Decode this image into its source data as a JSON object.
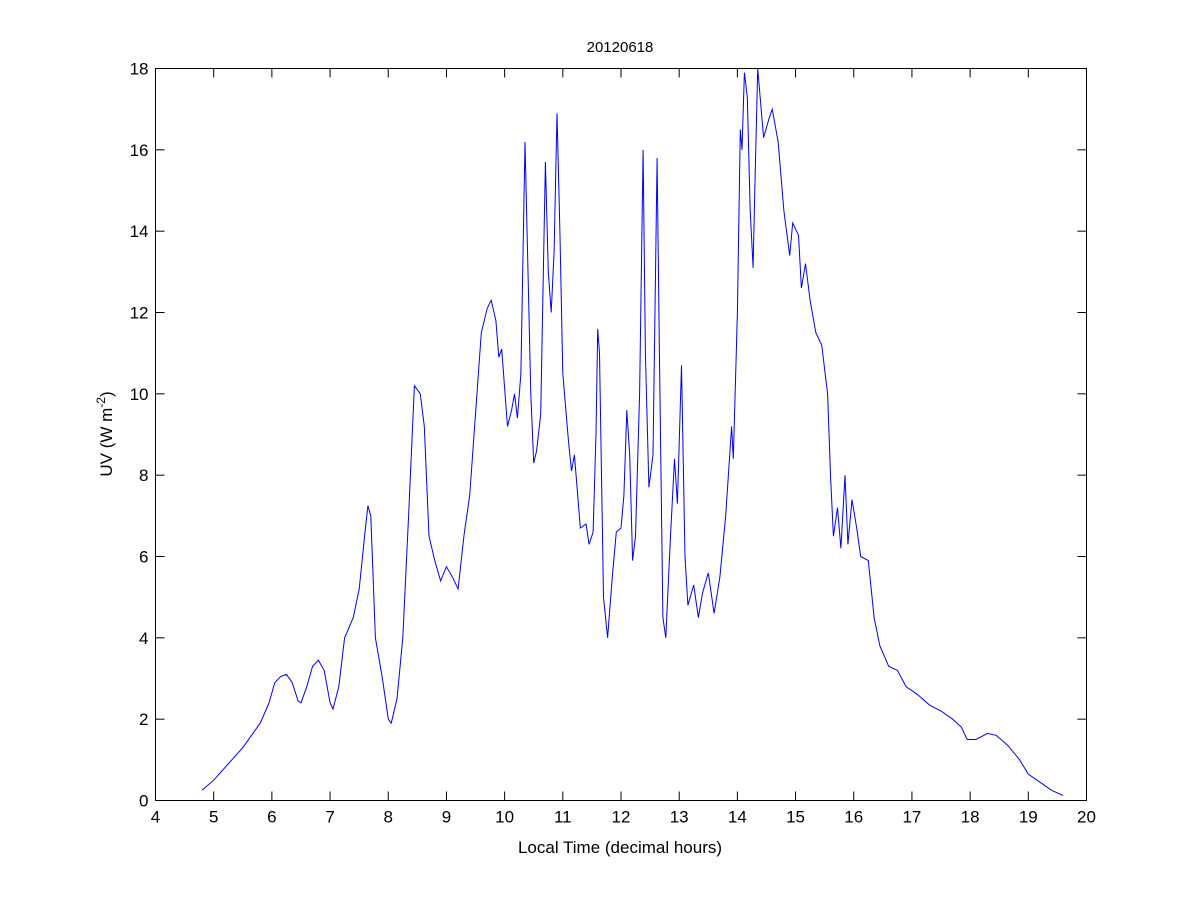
{
  "chart_data": {
    "type": "line",
    "title": "20120618",
    "xlabel": "Local Time (decimal hours)",
    "ylabel": "UV (W m",
    "ylabel_superscript": "-2",
    "ylabel_suffix": ")",
    "xlim": [
      4,
      20
    ],
    "ylim": [
      0,
      18
    ],
    "xticks": [
      4,
      5,
      6,
      7,
      8,
      9,
      10,
      11,
      12,
      13,
      14,
      15,
      16,
      17,
      18,
      19,
      20
    ],
    "yticks": [
      0,
      2,
      4,
      6,
      8,
      10,
      12,
      14,
      16,
      18
    ],
    "grid": false,
    "line_color": "#0000ff",
    "series": [
      {
        "x": [
          4.8,
          5.0,
          5.5,
          5.8,
          5.95,
          6.05,
          6.15,
          6.25,
          6.35,
          6.45,
          6.5,
          6.6,
          6.7,
          6.8,
          6.9,
          7.0,
          7.05,
          7.15,
          7.25,
          7.4,
          7.5,
          7.6,
          7.65,
          7.7,
          7.78,
          7.9,
          8.0,
          8.05,
          8.15,
          8.25,
          8.35,
          8.45,
          8.55,
          8.62,
          8.7,
          8.8,
          8.9,
          9.0,
          9.1,
          9.2,
          9.3,
          9.4,
          9.5,
          9.6,
          9.7,
          9.77,
          9.85,
          9.9,
          9.95,
          10.05,
          10.12,
          10.17,
          10.22,
          10.28,
          10.35,
          10.45,
          10.5,
          10.55,
          10.62,
          10.7,
          10.75,
          10.8,
          10.85,
          10.9,
          10.95,
          11.0,
          11.1,
          11.15,
          11.2,
          11.25,
          11.3,
          11.4,
          11.45,
          11.52,
          11.57,
          11.6,
          11.63,
          11.7,
          11.77,
          11.85,
          11.92,
          12.0,
          12.05,
          12.1,
          12.15,
          12.2,
          12.25,
          12.32,
          12.38,
          12.42,
          12.48,
          12.55,
          12.62,
          12.66,
          12.72,
          12.77,
          12.85,
          12.92,
          12.97,
          13.04,
          13.1,
          13.15,
          13.25,
          13.33,
          13.4,
          13.5,
          13.6,
          13.7,
          13.8,
          13.9,
          13.93,
          14.0,
          14.05,
          14.08,
          14.12,
          14.17,
          14.22,
          14.27,
          14.3,
          14.35,
          14.45,
          14.55,
          14.6,
          14.7,
          14.8,
          14.9,
          14.95,
          15.05,
          15.1,
          15.17,
          15.25,
          15.35,
          15.45,
          15.55,
          15.6,
          15.65,
          15.72,
          15.78,
          15.85,
          15.9,
          15.97,
          16.05,
          16.12,
          16.25,
          16.35,
          16.45,
          16.6,
          16.75,
          16.9,
          17.1,
          17.3,
          17.5,
          17.7,
          17.85,
          17.95,
          18.1,
          18.3,
          18.45,
          18.65,
          18.85,
          19.0,
          19.2,
          19.4,
          19.6
        ],
        "y": [
          0.25,
          0.5,
          1.3,
          1.9,
          2.4,
          2.9,
          3.05,
          3.1,
          2.9,
          2.45,
          2.4,
          2.8,
          3.3,
          3.45,
          3.2,
          2.4,
          2.25,
          2.8,
          4.0,
          4.5,
          5.2,
          6.6,
          7.25,
          7.0,
          4.0,
          3.0,
          2.0,
          1.9,
          2.5,
          4.0,
          7.0,
          10.2,
          10.0,
          9.2,
          6.5,
          5.9,
          5.4,
          5.75,
          5.5,
          5.2,
          6.5,
          7.5,
          9.5,
          11.5,
          12.1,
          12.3,
          11.8,
          10.9,
          11.1,
          9.2,
          9.6,
          10.0,
          9.4,
          10.5,
          16.2,
          10.0,
          8.3,
          8.6,
          9.5,
          15.7,
          13.0,
          12.0,
          13.5,
          16.9,
          14.0,
          10.5,
          8.8,
          8.1,
          8.5,
          7.6,
          6.7,
          6.8,
          6.3,
          6.6,
          9.0,
          11.6,
          11.0,
          5.0,
          4.0,
          5.5,
          6.6,
          6.7,
          7.5,
          9.6,
          8.5,
          5.9,
          6.5,
          10.0,
          16.0,
          11.0,
          7.7,
          8.5,
          15.8,
          11.0,
          4.5,
          4.0,
          6.5,
          8.4,
          7.3,
          10.7,
          6.0,
          4.8,
          5.3,
          4.5,
          5.1,
          5.6,
          4.6,
          5.5,
          7.0,
          9.2,
          8.4,
          12.0,
          16.5,
          16.0,
          17.9,
          17.3,
          14.5,
          13.1,
          15.0,
          18.0,
          16.3,
          16.8,
          17.0,
          16.2,
          14.5,
          13.4,
          14.2,
          13.9,
          12.6,
          13.2,
          12.3,
          11.5,
          11.2,
          10.0,
          8.0,
          6.5,
          7.2,
          6.2,
          8.0,
          6.3,
          7.4,
          6.7,
          6.0,
          5.9,
          4.5,
          3.8,
          3.3,
          3.2,
          2.8,
          2.6,
          2.35,
          2.2,
          2.0,
          1.8,
          1.5,
          1.5,
          1.65,
          1.6,
          1.35,
          1.0,
          0.65,
          0.45,
          0.25,
          0.12
        ]
      }
    ]
  }
}
